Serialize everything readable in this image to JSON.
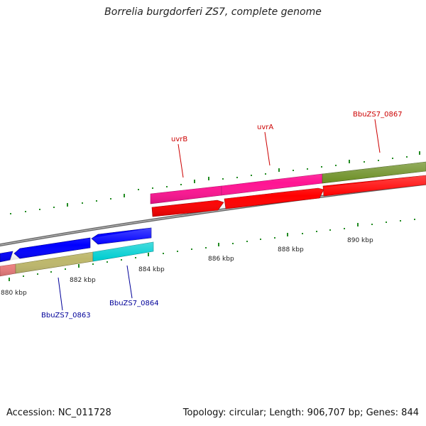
{
  "header": {
    "title": "Borrelia burgdorferi ZS7, complete genome"
  },
  "footer": {
    "accession": "Accession: NC_011728",
    "topology": "Topology: circular; Length: 906,707 bp; Genes: 844"
  },
  "scale": {
    "unit": "kbp",
    "tick_labels": [
      "880 kbp",
      "882 kbp",
      "884 kbp",
      "886 kbp",
      "888 kbp",
      "890 kbp"
    ]
  },
  "genes": [
    {
      "name": "uvrB",
      "strand": "forward",
      "color": "#ff1493"
    },
    {
      "name": "uvrA",
      "strand": "forward",
      "color": "#ff1493"
    },
    {
      "name": "BbuZS7_0867",
      "strand": "forward",
      "color": "#6b8e23"
    },
    {
      "name": "BbuZS7_0863",
      "strand": "reverse",
      "color": "#bdb76b"
    },
    {
      "name": "BbuZS7_0864",
      "strand": "reverse",
      "color": "#00ced1"
    }
  ],
  "colors": {
    "cds": "#ff0000",
    "cds_reverse": "#0000ff",
    "backbone": "#808080",
    "tick": "#228b22",
    "label_forward": "#cc0000",
    "label_reverse": "#000099"
  }
}
